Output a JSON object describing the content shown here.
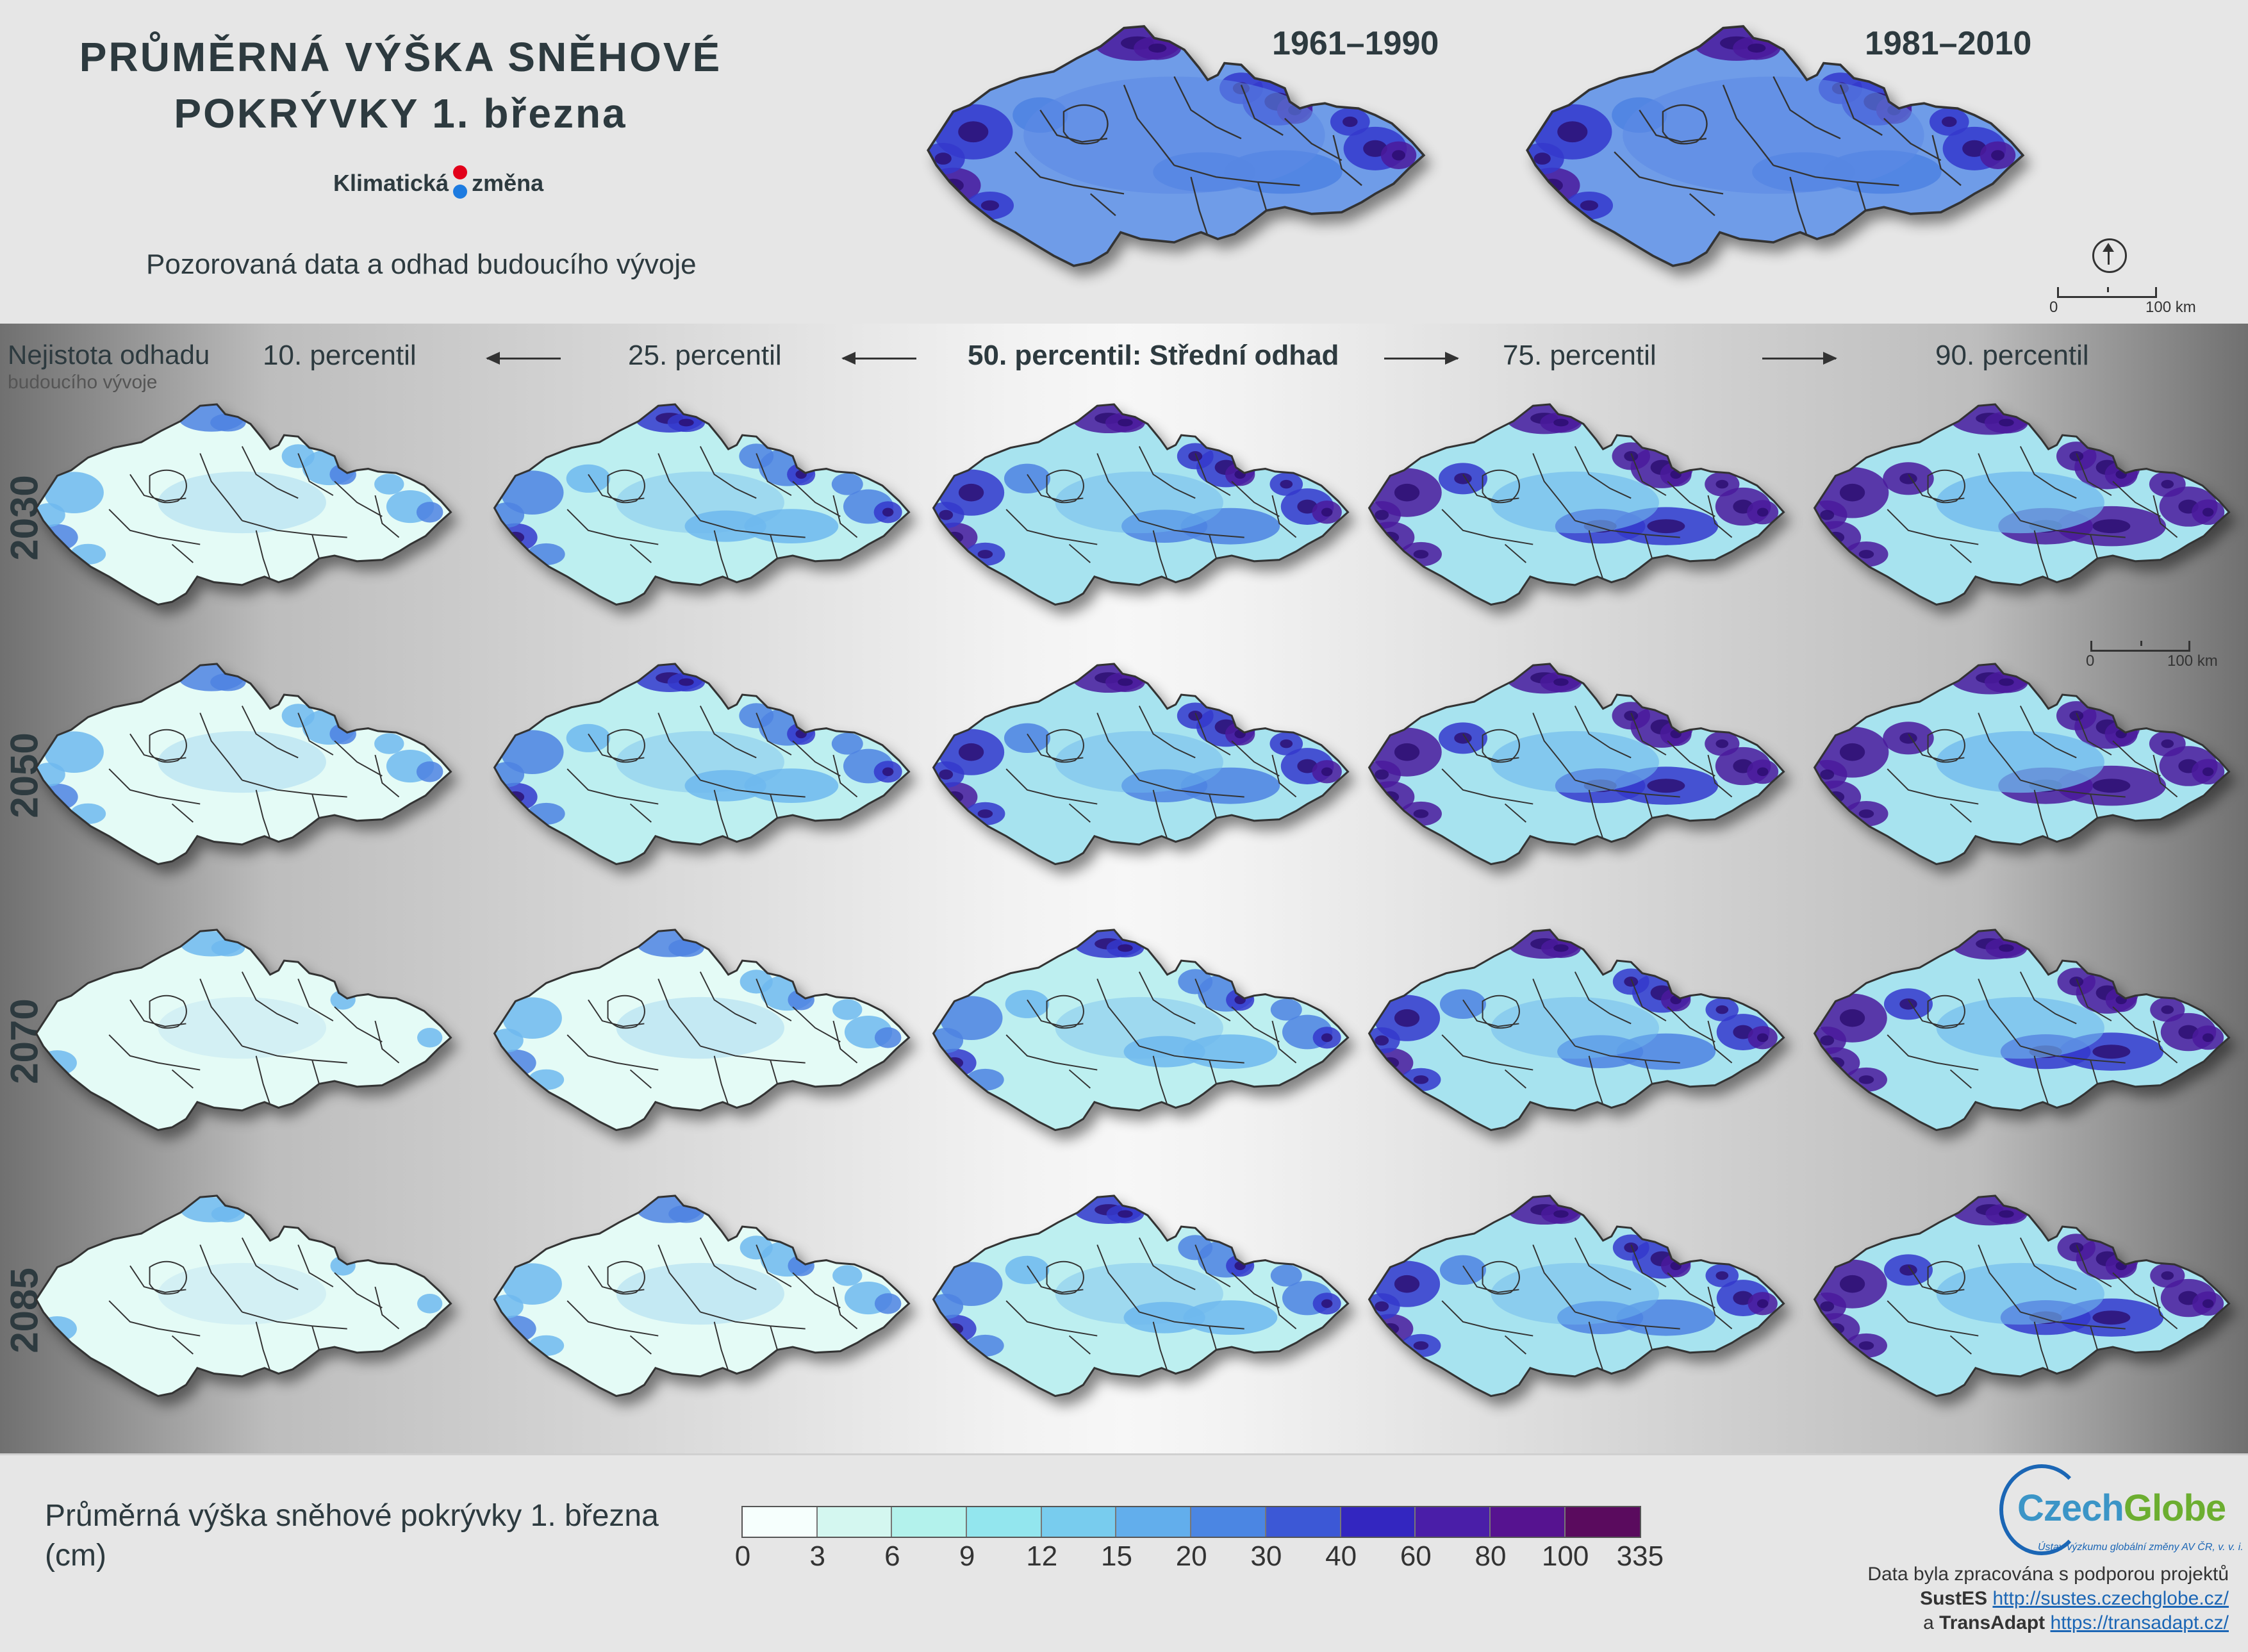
{
  "header": {
    "title_line1": "PRŮMĚRNÁ VÝŠKA SNĚHOVÉ",
    "title_line2": "POKRÝVKY 1. března",
    "logo_left": "Klimatická",
    "logo_right": "změna",
    "subtitle": "Pozorovaná data a odhad budoucího vývoje"
  },
  "observed": {
    "periods": [
      "1961–1990",
      "1981–2010"
    ],
    "scale_labels": [
      "0",
      "100 km"
    ]
  },
  "uncertainty": {
    "title": "Nejistota odhadu",
    "subtitle": "budoucího vývoje",
    "percentiles": [
      "10. percentil",
      "25. percentil",
      "50. percentil: Střední odhad",
      "75. percentil",
      "90. percentil"
    ],
    "scale_labels": [
      "0",
      "100 km"
    ]
  },
  "years": [
    "2030",
    "2050",
    "2070",
    "2085"
  ],
  "legend": {
    "title": "Průměrná výška sněhové pokrývky 1. března (cm)",
    "breaks": [
      "0",
      "3",
      "6",
      "9",
      "12",
      "15",
      "20",
      "30",
      "40",
      "60",
      "80",
      "100",
      "335"
    ],
    "colors": [
      "#f6fffd",
      "#d4f7f0",
      "#b3f2ec",
      "#93e6ee",
      "#78ccee",
      "#62aeec",
      "#4b86e3",
      "#3c58d6",
      "#3326c0",
      "#4a1ea8",
      "#561390",
      "#5a0b5e"
    ]
  },
  "credits": {
    "org_name_a": "Czech",
    "org_name_b": "Globe",
    "org_full": "Ústav výzkumu globální změny AV ČR, v. v. i.",
    "line1": "Data byla zpracována s podporou projektů",
    "project1": "SustES",
    "url1": "http://sustes.czechglobe.cz/",
    "conj": "a",
    "project2": "TransAdapt",
    "url2": "https://transadapt.cz/"
  }
}
